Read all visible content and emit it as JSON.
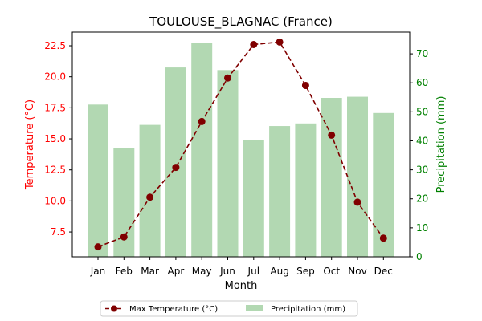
{
  "chart_data": {
    "type": "bar",
    "title": "TOULOUSE_BLAGNAC (France)",
    "xlabel": "Month",
    "ylabel_left": "Temperature (°C)",
    "ylabel_right": "Precipitation (mm)",
    "categories": [
      "Jan",
      "Feb",
      "Mar",
      "Apr",
      "May",
      "Jun",
      "Jul",
      "Aug",
      "Sep",
      "Oct",
      "Nov",
      "Dec"
    ],
    "series": [
      {
        "name": "Max Temperature (°C)",
        "type": "line",
        "axis": "left",
        "color": "#800000",
        "style": "dashed-markers",
        "values": [
          6.3,
          7.1,
          10.3,
          12.7,
          16.4,
          19.9,
          22.6,
          22.8,
          19.3,
          15.3,
          9.9,
          7.0
        ]
      },
      {
        "name": "Precipitation (mm)",
        "type": "bar",
        "axis": "right",
        "color": "#b2d8b2",
        "values": [
          52.5,
          37.5,
          45.5,
          65.3,
          73.8,
          64.4,
          40.2,
          45.1,
          46.0,
          54.8,
          55.2,
          49.6
        ]
      }
    ],
    "ylim_left": [
      5.5,
      23.6
    ],
    "yticks_left": [
      "7.5",
      "10.0",
      "12.5",
      "15.0",
      "17.5",
      "20.0",
      "22.5"
    ],
    "ylim_right": [
      0,
      77.5
    ],
    "yticks_right": [
      "0",
      "10",
      "20",
      "30",
      "40",
      "50",
      "60",
      "70"
    ],
    "left_axis_color": "#ff0000",
    "right_axis_color": "#008000",
    "grid": false,
    "legend_position": "bottom-center"
  }
}
